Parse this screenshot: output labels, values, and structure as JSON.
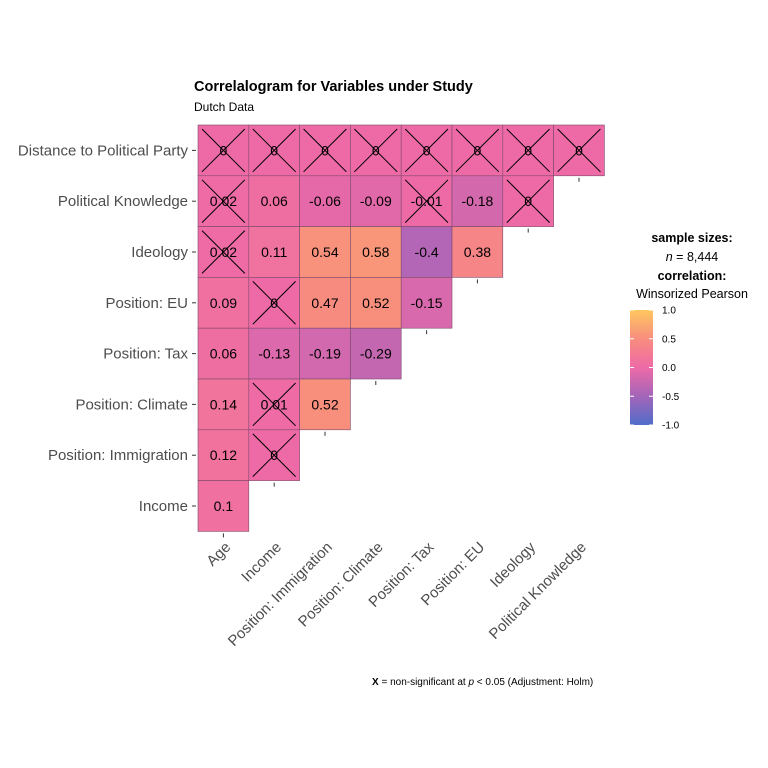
{
  "chart_data": {
    "type": "heatmap",
    "title": "Correlalogram for Variables under Study",
    "subtitle": "Dutch Data",
    "x_labels": [
      "Age",
      "Income",
      "Position: Immigration",
      "Position: Climate",
      "Position: Tax",
      "Position: EU",
      "Ideology",
      "Political Knowledge"
    ],
    "y_labels": [
      "Distance to Political Party",
      "Political Knowledge",
      "Ideology",
      "Position: EU",
      "Position: Tax",
      "Position: Climate",
      "Position: Immigration",
      "Income"
    ],
    "cells": [
      {
        "x": "Age",
        "y": "Distance to Political Party",
        "value": 0,
        "label": "0",
        "ns": true
      },
      {
        "x": "Income",
        "y": "Distance to Political Party",
        "value": 0,
        "label": "0",
        "ns": true
      },
      {
        "x": "Position: Immigration",
        "y": "Distance to Political Party",
        "value": 0,
        "label": "0",
        "ns": true
      },
      {
        "x": "Position: Climate",
        "y": "Distance to Political Party",
        "value": 0,
        "label": "0",
        "ns": true
      },
      {
        "x": "Position: Tax",
        "y": "Distance to Political Party",
        "value": 0,
        "label": "0",
        "ns": true
      },
      {
        "x": "Position: EU",
        "y": "Distance to Political Party",
        "value": 0,
        "label": "0",
        "ns": true
      },
      {
        "x": "Ideology",
        "y": "Distance to Political Party",
        "value": 0,
        "label": "0",
        "ns": true
      },
      {
        "x": "Political Knowledge",
        "y": "Distance to Political Party",
        "value": 0,
        "label": "0",
        "ns": true
      },
      {
        "x": "Age",
        "y": "Political Knowledge",
        "value": 0.02,
        "label": "0.02",
        "ns": true
      },
      {
        "x": "Income",
        "y": "Political Knowledge",
        "value": 0.06,
        "label": "0.06",
        "ns": false
      },
      {
        "x": "Position: Immigration",
        "y": "Political Knowledge",
        "value": -0.06,
        "label": "-0.06",
        "ns": false
      },
      {
        "x": "Position: Climate",
        "y": "Political Knowledge",
        "value": -0.09,
        "label": "-0.09",
        "ns": false
      },
      {
        "x": "Position: Tax",
        "y": "Political Knowledge",
        "value": -0.01,
        "label": "-0.01",
        "ns": true
      },
      {
        "x": "Position: EU",
        "y": "Political Knowledge",
        "value": -0.18,
        "label": "-0.18",
        "ns": false
      },
      {
        "x": "Ideology",
        "y": "Political Knowledge",
        "value": 0,
        "label": "0",
        "ns": true
      },
      {
        "x": "Age",
        "y": "Ideology",
        "value": 0.02,
        "label": "0.02",
        "ns": true
      },
      {
        "x": "Income",
        "y": "Ideology",
        "value": 0.11,
        "label": "0.11",
        "ns": false
      },
      {
        "x": "Position: Immigration",
        "y": "Ideology",
        "value": 0.54,
        "label": "0.54",
        "ns": false
      },
      {
        "x": "Position: Climate",
        "y": "Ideology",
        "value": 0.58,
        "label": "0.58",
        "ns": false
      },
      {
        "x": "Position: Tax",
        "y": "Ideology",
        "value": -0.4,
        "label": "-0.4",
        "ns": false
      },
      {
        "x": "Position: EU",
        "y": "Ideology",
        "value": 0.38,
        "label": "0.38",
        "ns": false
      },
      {
        "x": "Age",
        "y": "Position: EU",
        "value": 0.09,
        "label": "0.09",
        "ns": false
      },
      {
        "x": "Income",
        "y": "Position: EU",
        "value": 0,
        "label": "0",
        "ns": true
      },
      {
        "x": "Position: Immigration",
        "y": "Position: EU",
        "value": 0.47,
        "label": "0.47",
        "ns": false
      },
      {
        "x": "Position: Climate",
        "y": "Position: EU",
        "value": 0.52,
        "label": "0.52",
        "ns": false
      },
      {
        "x": "Position: Tax",
        "y": "Position: EU",
        "value": -0.15,
        "label": "-0.15",
        "ns": false
      },
      {
        "x": "Age",
        "y": "Position: Tax",
        "value": 0.06,
        "label": "0.06",
        "ns": false
      },
      {
        "x": "Income",
        "y": "Position: Tax",
        "value": -0.13,
        "label": "-0.13",
        "ns": false
      },
      {
        "x": "Position: Immigration",
        "y": "Position: Tax",
        "value": -0.19,
        "label": "-0.19",
        "ns": false
      },
      {
        "x": "Position: Climate",
        "y": "Position: Tax",
        "value": -0.29,
        "label": "-0.29",
        "ns": false
      },
      {
        "x": "Age",
        "y": "Position: Climate",
        "value": 0.14,
        "label": "0.14",
        "ns": false
      },
      {
        "x": "Income",
        "y": "Position: Climate",
        "value": 0.01,
        "label": "0.01",
        "ns": true
      },
      {
        "x": "Position: Immigration",
        "y": "Position: Climate",
        "value": 0.52,
        "label": "0.52",
        "ns": false
      },
      {
        "x": "Age",
        "y": "Position: Immigration",
        "value": 0.12,
        "label": "0.12",
        "ns": false
      },
      {
        "x": "Income",
        "y": "Position: Immigration",
        "value": 0,
        "label": "0",
        "ns": true
      },
      {
        "x": "Age",
        "y": "Income",
        "value": 0.1,
        "label": "0.1",
        "ns": false
      }
    ],
    "color_scale": {
      "min": -1,
      "max": 1,
      "low": "#4f6dc9",
      "mid": "#ee6aa7",
      "high": "#ffc75f",
      "breaks": [
        "1.0",
        "0.5",
        "0.0",
        "-0.5",
        "-1.0"
      ]
    },
    "legend": {
      "sample_label": "sample sizes:",
      "n_symbol": "n",
      "n_value": " = 8,444",
      "corr_label": "correlation:",
      "corr_method": "Winsorized Pearson",
      "position": "right"
    },
    "caption": {
      "x_mark": "X",
      "text_a": " = non-significant at ",
      "p_symbol": "p",
      "text_b": " < 0.05 (Adjustment: Holm)"
    },
    "grid": false
  }
}
